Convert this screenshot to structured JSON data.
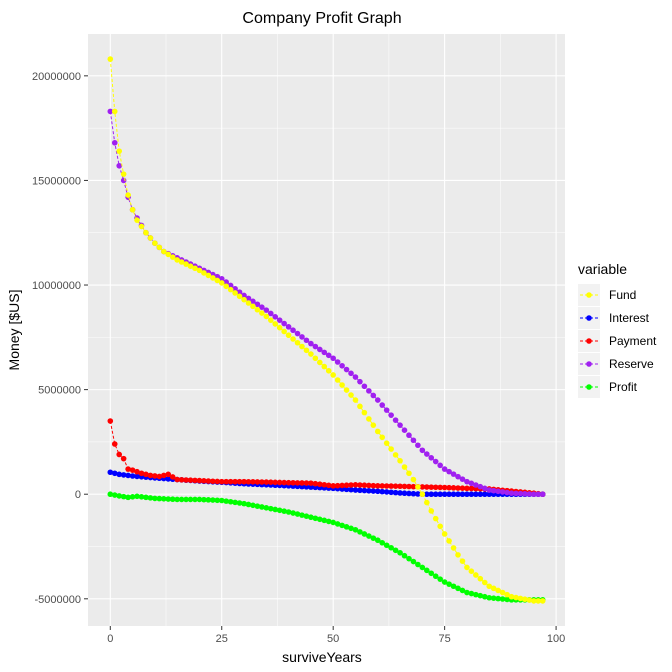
{
  "chart_data": {
    "type": "line",
    "title": "Company Profit Graph",
    "xlabel": "surviveYears",
    "ylabel": "Money [$US]",
    "xlim": [
      -5,
      102
    ],
    "ylim": [
      -6300000,
      22000000
    ],
    "x_ticks": [
      0,
      25,
      50,
      75,
      100
    ],
    "x_tick_labels": [
      "0",
      "25",
      "50",
      "75",
      "100"
    ],
    "y_ticks": [
      -5000000,
      0,
      5000000,
      10000000,
      15000000,
      20000000
    ],
    "y_tick_labels": [
      "-5000000",
      "0",
      "5000000",
      "10000000",
      "15000000",
      "20000000"
    ],
    "grid": true,
    "legend": {
      "title": "variable",
      "position": "right"
    },
    "x_range": [
      0,
      97
    ],
    "series": [
      {
        "name": "Fund",
        "color": "#FFFF00",
        "x": [
          0,
          1,
          2,
          3,
          4,
          5,
          6,
          8,
          10,
          12,
          15,
          20,
          25,
          30,
          35,
          40,
          45,
          50,
          55,
          60,
          65,
          68,
          70,
          72,
          75,
          78,
          80,
          85,
          90,
          95,
          97
        ],
        "values": [
          20800000,
          18300000,
          16400000,
          15300000,
          14300000,
          13600000,
          13100000,
          12500000,
          12000000,
          11600000,
          11200000,
          10700000,
          10100000,
          9300000,
          8500000,
          7600000,
          6700000,
          5700000,
          4500000,
          3000000,
          1600000,
          700000,
          0,
          -800000,
          -1900000,
          -2900000,
          -3500000,
          -4400000,
          -4900000,
          -5100000,
          -5100000
        ]
      },
      {
        "name": "Interest",
        "color": "#0000FF",
        "x": [
          0,
          2,
          5,
          10,
          15,
          20,
          25,
          30,
          35,
          40,
          45,
          50,
          55,
          60,
          65,
          70,
          75,
          80,
          85,
          90,
          95,
          97
        ],
        "values": [
          1050000,
          950000,
          870000,
          780000,
          700000,
          630000,
          570000,
          500000,
          450000,
          400000,
          340000,
          280000,
          200000,
          140000,
          60000,
          0,
          0,
          0,
          0,
          0,
          0,
          0
        ]
      },
      {
        "name": "Payment",
        "color": "#FF0000",
        "x": [
          0,
          1,
          2,
          3,
          4,
          5,
          7,
          9,
          11,
          13,
          15,
          20,
          25,
          30,
          35,
          40,
          45,
          50,
          55,
          60,
          65,
          70,
          75,
          80,
          85,
          90,
          95,
          97
        ],
        "values": [
          3500000,
          2400000,
          1900000,
          1700000,
          1200000,
          1150000,
          1000000,
          900000,
          850000,
          950000,
          700000,
          650000,
          600000,
          600000,
          580000,
          550000,
          530000,
          400000,
          450000,
          400000,
          380000,
          350000,
          320000,
          280000,
          250000,
          150000,
          50000,
          0
        ]
      },
      {
        "name": "Reserve",
        "color": "#A020F0",
        "x": [
          0,
          1,
          2,
          3,
          4,
          5,
          6,
          8,
          10,
          12,
          15,
          20,
          25,
          30,
          35,
          40,
          45,
          50,
          55,
          60,
          65,
          70,
          75,
          80,
          85,
          90,
          95,
          97
        ],
        "values": [
          18300000,
          16800000,
          15700000,
          15000000,
          14200000,
          13600000,
          13200000,
          12500000,
          12000000,
          11600000,
          11300000,
          10800000,
          10300000,
          9500000,
          8800000,
          8000000,
          7200000,
          6500000,
          5600000,
          4500000,
          3300000,
          2100000,
          1200000,
          600000,
          200000,
          50000,
          0,
          0
        ]
      },
      {
        "name": "Profit",
        "color": "#00FF00",
        "x": [
          0,
          2,
          4,
          6,
          8,
          10,
          15,
          20,
          25,
          30,
          35,
          40,
          45,
          50,
          55,
          60,
          65,
          70,
          75,
          80,
          85,
          90,
          95,
          97
        ],
        "values": [
          0,
          -80000,
          -150000,
          -100000,
          -150000,
          -200000,
          -250000,
          -250000,
          -300000,
          -450000,
          -650000,
          -850000,
          -1100000,
          -1350000,
          -1700000,
          -2200000,
          -2800000,
          -3500000,
          -4200000,
          -4700000,
          -4950000,
          -5050000,
          -5050000,
          -5050000
        ]
      }
    ]
  }
}
